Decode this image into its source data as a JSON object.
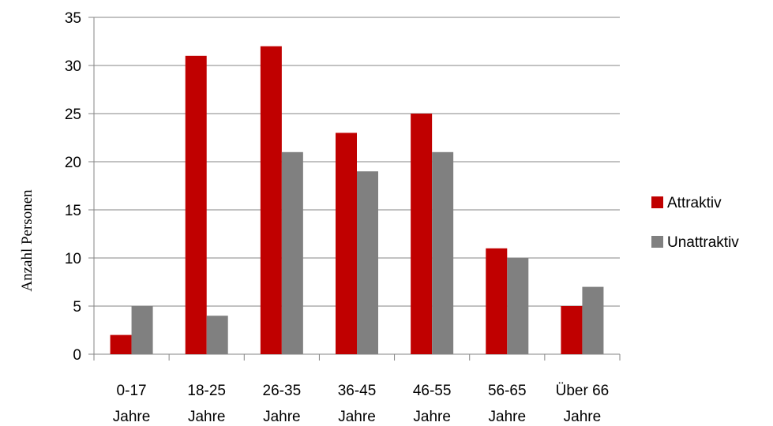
{
  "chart_data": {
    "type": "bar",
    "categories": [
      [
        "0-17",
        "Jahre"
      ],
      [
        "18-25",
        "Jahre"
      ],
      [
        "26-35",
        "Jahre"
      ],
      [
        "36-45",
        "Jahre"
      ],
      [
        "46-55",
        "Jahre"
      ],
      [
        "56-65",
        "Jahre"
      ],
      [
        "Über 66",
        "Jahre"
      ]
    ],
    "series": [
      {
        "name": "Attraktiv",
        "color": "#c00000",
        "values": [
          2,
          31,
          32,
          23,
          25,
          11,
          5
        ]
      },
      {
        "name": "Unattraktiv",
        "color": "#808080",
        "values": [
          5,
          4,
          21,
          19,
          21,
          10,
          7
        ]
      }
    ],
    "title": "",
    "xlabel": "",
    "ylabel": "Anzahl Personen",
    "ylim": [
      0,
      35
    ],
    "yticks": [
      0,
      5,
      10,
      15,
      20,
      25,
      30,
      35
    ],
    "grid": true,
    "legend_position": "right"
  }
}
